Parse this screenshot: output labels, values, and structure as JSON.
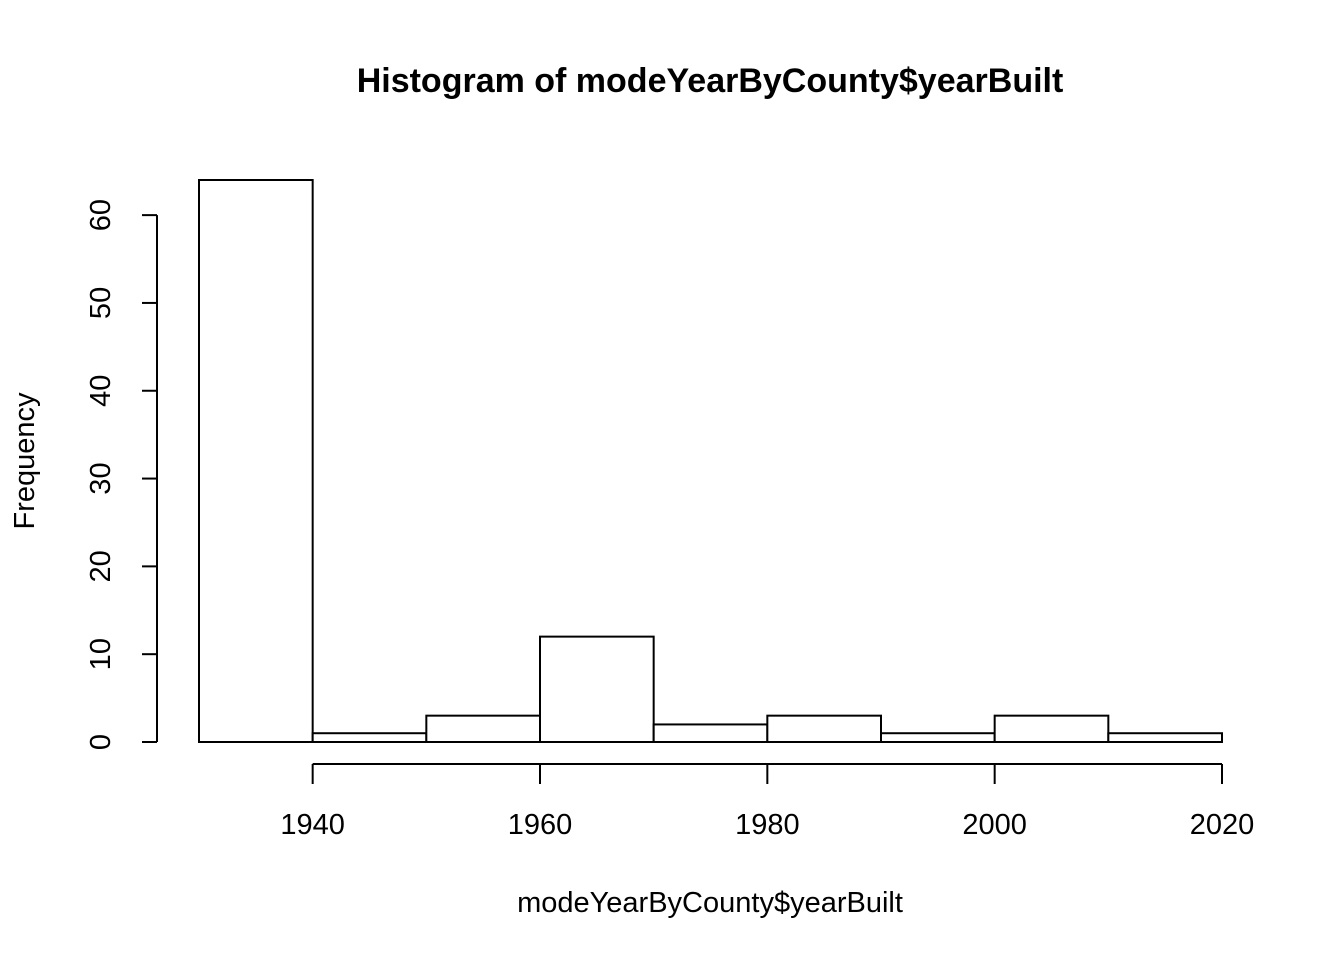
{
  "chart_data": {
    "type": "bar",
    "title": "Histogram of modeYearByCounty$yearBuilt",
    "xlabel": "modeYearByCounty$yearBuilt",
    "ylabel": "Frequency",
    "bins": [
      {
        "from": 1930,
        "to": 1940,
        "value": 64
      },
      {
        "from": 1940,
        "to": 1950,
        "value": 1
      },
      {
        "from": 1950,
        "to": 1960,
        "value": 3
      },
      {
        "from": 1960,
        "to": 1970,
        "value": 12
      },
      {
        "from": 1970,
        "to": 1980,
        "value": 2
      },
      {
        "from": 1980,
        "to": 1990,
        "value": 3
      },
      {
        "from": 1990,
        "to": 2000,
        "value": 1
      },
      {
        "from": 2000,
        "to": 2010,
        "value": 3
      },
      {
        "from": 2010,
        "to": 2020,
        "value": 1
      }
    ],
    "xticks": [
      1940,
      1960,
      1980,
      2000,
      2020
    ],
    "yticks": [
      0,
      10,
      20,
      30,
      40,
      50,
      60
    ],
    "xlim": [
      1930,
      2020
    ],
    "ylim": [
      0,
      64
    ],
    "grid": false,
    "legend": "none"
  }
}
